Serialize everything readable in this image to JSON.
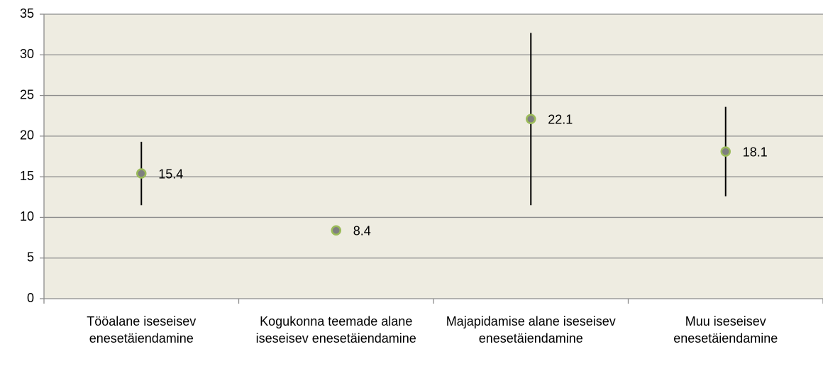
{
  "chart_data": {
    "type": "errorbar",
    "categories": [
      "Tööalane iseseisev enesetäiendamine",
      "Kogukonna teemade alane iseseisev enesetäiendamine",
      "Majapidamise alane iseseisev enesetäiendamine",
      "Muu iseseisev enesetäiendamine"
    ],
    "values": [
      15.4,
      8.4,
      22.1,
      18.1
    ],
    "errors": [
      3.9,
      null,
      10.6,
      5.5
    ],
    "color": "#7f7f7f",
    "edge_color": "#9bbb59",
    "error_color": "#000000",
    "plot_background": "#eeece1",
    "ylim": [
      0,
      35
    ],
    "yticks": [
      0,
      5,
      10,
      15,
      20,
      25,
      30,
      35
    ],
    "grid": true
  }
}
